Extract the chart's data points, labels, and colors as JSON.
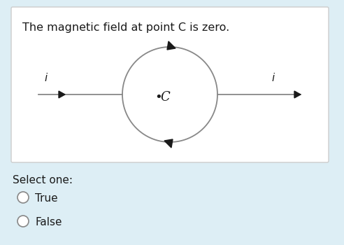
{
  "background_color": "#ddeef5",
  "box_background": "#ffffff",
  "title_text": "The magnetic field at point C is zero.",
  "title_fontsize": 11.5,
  "title_color": "#1a1a1a",
  "line_color": "#888888",
  "line_lw": 1.3,
  "arrow_color": "#1a1a1a",
  "C_label": "C",
  "dot_label": "•",
  "i_label": "i",
  "select_text": "Select one:",
  "true_text": "True",
  "false_text": "False",
  "select_fontsize": 11,
  "option_fontsize": 11
}
